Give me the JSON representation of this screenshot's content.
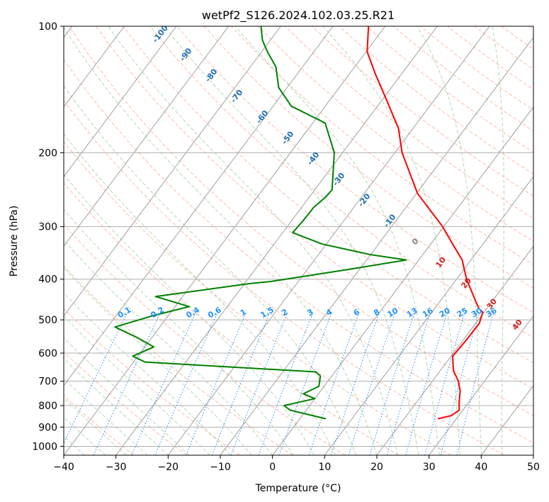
{
  "chart_data": {
    "type": "line",
    "title": "wetPf2_S126.2024.102.03.25.R21",
    "xlabel": "Temperature (°C)",
    "ylabel": "Pressure (hPa)",
    "xlim": [
      -40,
      50
    ],
    "ylim": [
      1050,
      100
    ],
    "y_scale": "log",
    "grid": true,
    "x_ticks": [
      -40,
      -30,
      -20,
      -10,
      0,
      10,
      20,
      30,
      40,
      50
    ],
    "y_ticks": [
      100,
      200,
      300,
      400,
      500,
      600,
      700,
      800,
      900,
      1000
    ],
    "skew_isotherm_labels": [
      "-100",
      "-90",
      "-80",
      "-70",
      "-60",
      "-50",
      "-40",
      "-30",
      "-20",
      "-10",
      "0",
      "10",
      "20",
      "30",
      "40"
    ],
    "mixing_ratio_labels": [
      "0.1",
      "0.2",
      "0.4",
      "0.6",
      "1",
      "1.5",
      "2",
      "3",
      "4",
      "6",
      "8",
      "10",
      "13",
      "16",
      "20",
      "25",
      "30",
      "36"
    ],
    "colors": {
      "temperature": "#ff0000",
      "dewpoint": "#008000",
      "isotherm": "#a0a0a0",
      "dry_adiabat": "#ff8c69",
      "moist_adiabat": "#90c890",
      "mixing_ratio": "#1e90ff",
      "cold_isotherm_label": "#1f6fb4",
      "warm_isotherm_label": "#d02020"
    },
    "series": [
      {
        "name": "temperature",
        "points": [
          [
            26.5,
            860
          ],
          [
            28.6,
            845
          ],
          [
            29.3,
            820
          ],
          [
            28.3,
            790
          ],
          [
            26.8,
            740
          ],
          [
            25,
            700
          ],
          [
            22.5,
            660
          ],
          [
            20.3,
            610
          ],
          [
            20.6,
            560
          ],
          [
            20.7,
            510
          ],
          [
            19.8,
            480
          ],
          [
            18.5,
            470
          ],
          [
            16.7,
            450
          ],
          [
            11.9,
            400
          ],
          [
            8.3,
            360
          ],
          [
            4.2,
            330
          ],
          [
            -0.2,
            300
          ],
          [
            -9.8,
            250
          ],
          [
            -18.6,
            200
          ],
          [
            -22.8,
            175
          ],
          [
            -29.1,
            150
          ],
          [
            -35,
            130
          ],
          [
            -39.8,
            115
          ],
          [
            -43.2,
            100
          ]
        ]
      },
      {
        "name": "dewpoint",
        "points": [
          [
            5,
            860
          ],
          [
            1,
            840
          ],
          [
            -3.1,
            820
          ],
          [
            -4.9,
            800
          ],
          [
            -2.5,
            785
          ],
          [
            0,
            770
          ],
          [
            -2.9,
            750
          ],
          [
            -1,
            720
          ],
          [
            -2.2,
            680
          ],
          [
            -3.7,
            665
          ],
          [
            -37.8,
            630
          ],
          [
            -41,
            610
          ],
          [
            -38.3,
            580
          ],
          [
            -43,
            550
          ],
          [
            -48.6,
            520
          ],
          [
            -43.2,
            490
          ],
          [
            -37.3,
            465
          ],
          [
            -45.2,
            440
          ],
          [
            -29.1,
            410
          ],
          [
            -25.2,
            405
          ],
          [
            -12.5,
            380
          ],
          [
            -2.4,
            360
          ],
          [
            -9.9,
            350
          ],
          [
            -20.8,
            330
          ],
          [
            -28.1,
            310
          ],
          [
            -27.8,
            290
          ],
          [
            -27.7,
            270
          ],
          [
            -26.9,
            255
          ],
          [
            -26.7,
            245
          ],
          [
            -31.6,
            200
          ],
          [
            -37.6,
            170
          ],
          [
            -46.5,
            155
          ],
          [
            -51.6,
            140
          ],
          [
            -55.1,
            125
          ],
          [
            -58.9,
            115
          ],
          [
            -61.5,
            108
          ],
          [
            -63.8,
            100
          ]
        ]
      }
    ]
  }
}
